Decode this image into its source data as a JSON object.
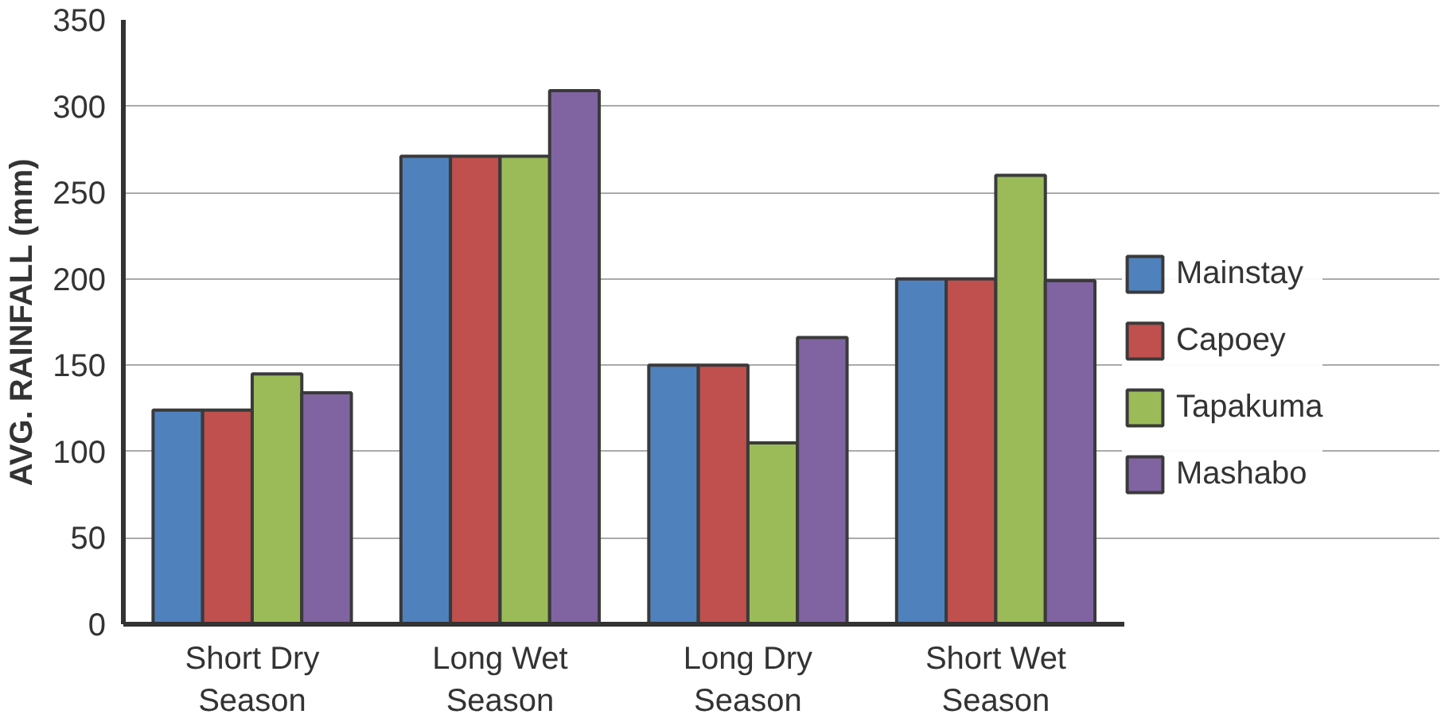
{
  "chart_data": {
    "type": "bar",
    "ylabel": "AVG. RAINFALL (mm)",
    "categories": [
      "Short Dry\nSeason",
      "Long Wet\nSeason",
      "Long Dry\nSeason",
      "Short Wet\nSeason"
    ],
    "series": [
      {
        "name": "Mainstay",
        "color": "#4f81bd",
        "values": [
          124,
          271,
          150,
          200
        ]
      },
      {
        "name": "Capoey",
        "color": "#c0504d",
        "values": [
          124,
          271,
          150,
          200
        ]
      },
      {
        "name": "Tapakuma",
        "color": "#9bbb59",
        "values": [
          145,
          271,
          105,
          260
        ]
      },
      {
        "name": "Mashabo",
        "color": "#8064a2",
        "values": [
          134,
          309,
          166,
          199
        ]
      }
    ],
    "ylim": [
      0,
      350
    ],
    "yticks": [
      0,
      50,
      100,
      150,
      200,
      250,
      300,
      350
    ],
    "grid": "y",
    "legend": "right"
  }
}
